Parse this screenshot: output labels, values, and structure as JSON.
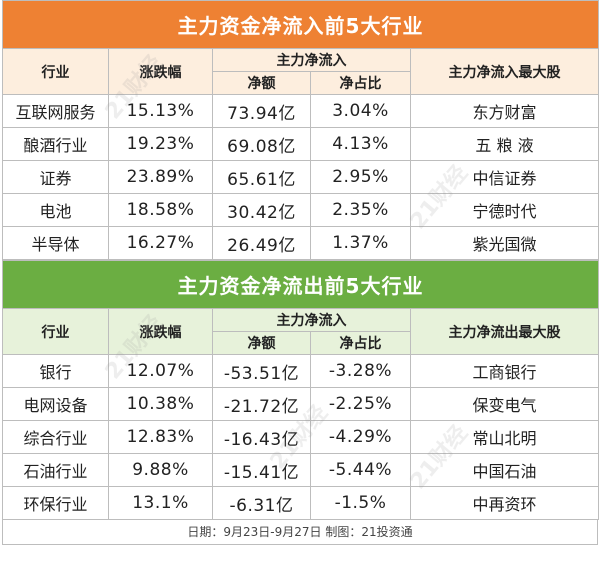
{
  "inflow": {
    "title": "主力资金净流入前5大行业",
    "headers": {
      "industry": "行业",
      "change": "涨跌幅",
      "group": "主力净流入",
      "net": "净额",
      "ratio": "净占比",
      "top_stock": "主力净流入最大股"
    },
    "rows": [
      {
        "industry": "互联网服务",
        "change": "15.13%",
        "net": "73.94亿",
        "ratio": "3.04%",
        "stock": "东方财富"
      },
      {
        "industry": "酿酒行业",
        "change": "19.23%",
        "net": "69.08亿",
        "ratio": "4.13%",
        "stock": "五 粮 液"
      },
      {
        "industry": "证券",
        "change": "23.89%",
        "net": "65.61亿",
        "ratio": "2.95%",
        "stock": "中信证券"
      },
      {
        "industry": "电池",
        "change": "18.58%",
        "net": "30.42亿",
        "ratio": "2.35%",
        "stock": "宁德时代"
      },
      {
        "industry": "半导体",
        "change": "16.27%",
        "net": "26.49亿",
        "ratio": "1.37%",
        "stock": "紫光国微"
      }
    ]
  },
  "outflow": {
    "title": "主力资金净流出前5大行业",
    "headers": {
      "industry": "行业",
      "change": "涨跌幅",
      "group": "主力净流入",
      "net": "净额",
      "ratio": "净占比",
      "top_stock": "主力净流出最大股"
    },
    "rows": [
      {
        "industry": "银行",
        "change": "12.07%",
        "net": "-53.51亿",
        "ratio": "-3.28%",
        "stock": "工商银行"
      },
      {
        "industry": "电网设备",
        "change": "10.38%",
        "net": "-21.72亿",
        "ratio": "-2.25%",
        "stock": "保变电气"
      },
      {
        "industry": "综合行业",
        "change": "12.83%",
        "net": "-16.43亿",
        "ratio": "-4.29%",
        "stock": "常山北明"
      },
      {
        "industry": "石油行业",
        "change": "9.88%",
        "net": "-15.41亿",
        "ratio": "-5.44%",
        "stock": "中国石油"
      },
      {
        "industry": "环保行业",
        "change": "13.1%",
        "net": "-6.31亿",
        "ratio": "-1.5%",
        "stock": "中再资环"
      }
    ]
  },
  "footer": "日期：9月23日-9月27日 制图：21投资通",
  "watermark": "21财经",
  "colors": {
    "inflow_banner": "#ee8133",
    "outflow_banner": "#6bae42",
    "inflow_header_bg": "#fdeede",
    "outflow_header_bg": "#e7f2da"
  }
}
